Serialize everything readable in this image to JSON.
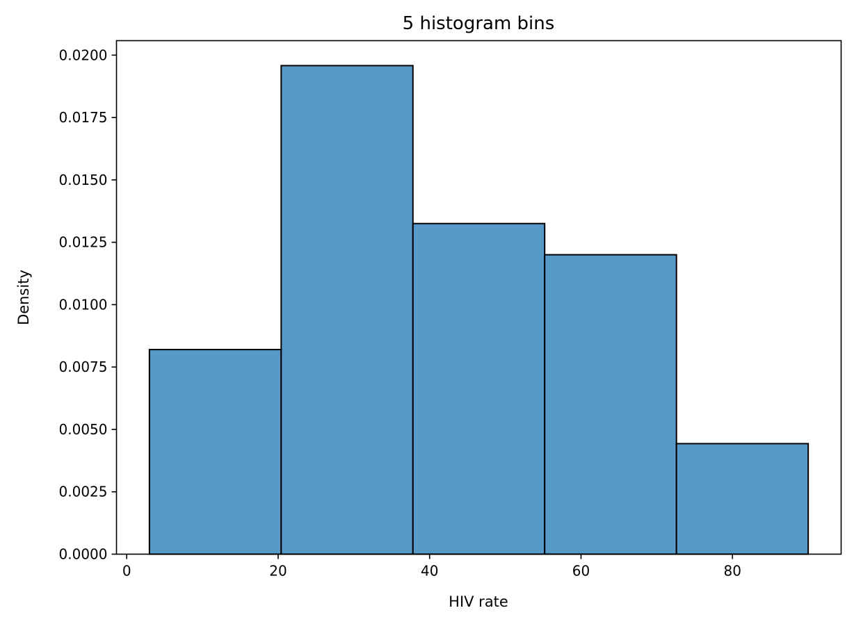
{
  "chart_data": {
    "type": "bar",
    "title": "5 histogram bins",
    "xlabel": "HIV rate",
    "ylabel": "Density",
    "xlim": [
      -1.35,
      94.35
    ],
    "ylim": [
      0,
      0.02058
    ],
    "xticks": [
      0,
      20,
      40,
      60,
      80
    ],
    "xtick_labels": [
      "0",
      "20",
      "40",
      "60",
      "80"
    ],
    "yticks": [
      0,
      0.0025,
      0.005,
      0.0075,
      0.01,
      0.0125,
      0.015,
      0.0175,
      0.02
    ],
    "ytick_labels": [
      "0.0000",
      "0.0025",
      "0.0050",
      "0.0075",
      "0.0100",
      "0.0125",
      "0.0150",
      "0.0175",
      "0.0200"
    ],
    "bin_edges": [
      3.0,
      20.4,
      37.8,
      55.2,
      72.6,
      90.0
    ],
    "values": [
      0.0082,
      0.01958,
      0.01325,
      0.012,
      0.00443
    ],
    "bar_color": "#5799c7",
    "edge_color": "#000000",
    "grid": false,
    "legend": "none"
  }
}
